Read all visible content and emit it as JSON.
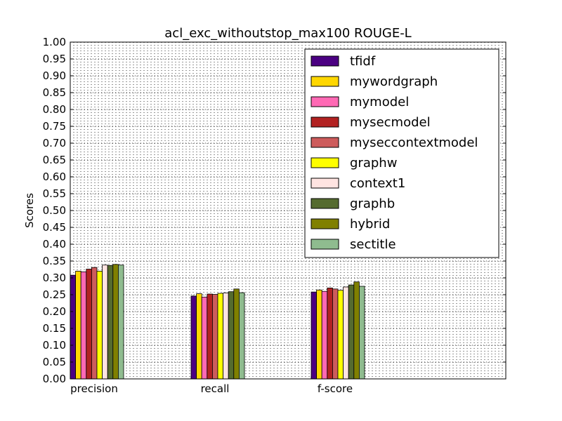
{
  "chart_data": {
    "type": "bar",
    "title": "acl_exc_withoutstop_max100 ROUGE-L",
    "xlabel": "",
    "ylabel": "Scores",
    "ylim": [
      0,
      1.0
    ],
    "yticks": [
      "0.00",
      "0.05",
      "0.10",
      "0.15",
      "0.20",
      "0.25",
      "0.30",
      "0.35",
      "0.40",
      "0.45",
      "0.50",
      "0.55",
      "0.60",
      "0.65",
      "0.70",
      "0.75",
      "0.80",
      "0.85",
      "0.90",
      "0.95",
      "1.00"
    ],
    "categories": [
      "precision",
      "recall",
      "f-score"
    ],
    "grid": true,
    "legend_position": "top-right",
    "series": [
      {
        "name": "tfidf",
        "color": "#4b0082",
        "values": [
          0.308,
          0.246,
          0.258
        ]
      },
      {
        "name": "mywordgraph",
        "color": "#ffd700",
        "values": [
          0.32,
          0.253,
          0.264
        ]
      },
      {
        "name": "mymodel",
        "color": "#ff69b4",
        "values": [
          0.318,
          0.243,
          0.26
        ]
      },
      {
        "name": "mysecmodel",
        "color": "#b22222",
        "values": [
          0.326,
          0.252,
          0.27
        ]
      },
      {
        "name": "myseccontextmodel",
        "color": "#cd5c5c",
        "values": [
          0.331,
          0.251,
          0.267
        ]
      },
      {
        "name": "graphw",
        "color": "#ffff00",
        "values": [
          0.32,
          0.254,
          0.263
        ]
      },
      {
        "name": "context1",
        "color": "#ffe4e1",
        "values": [
          0.338,
          0.255,
          0.273
        ]
      },
      {
        "name": "graphb",
        "color": "#556b2f",
        "values": [
          0.337,
          0.259,
          0.279
        ]
      },
      {
        "name": "hybrid",
        "color": "#808000",
        "values": [
          0.34,
          0.267,
          0.288
        ]
      },
      {
        "name": "sectitle",
        "color": "#8fbc8f",
        "values": [
          0.338,
          0.256,
          0.275
        ]
      }
    ]
  }
}
